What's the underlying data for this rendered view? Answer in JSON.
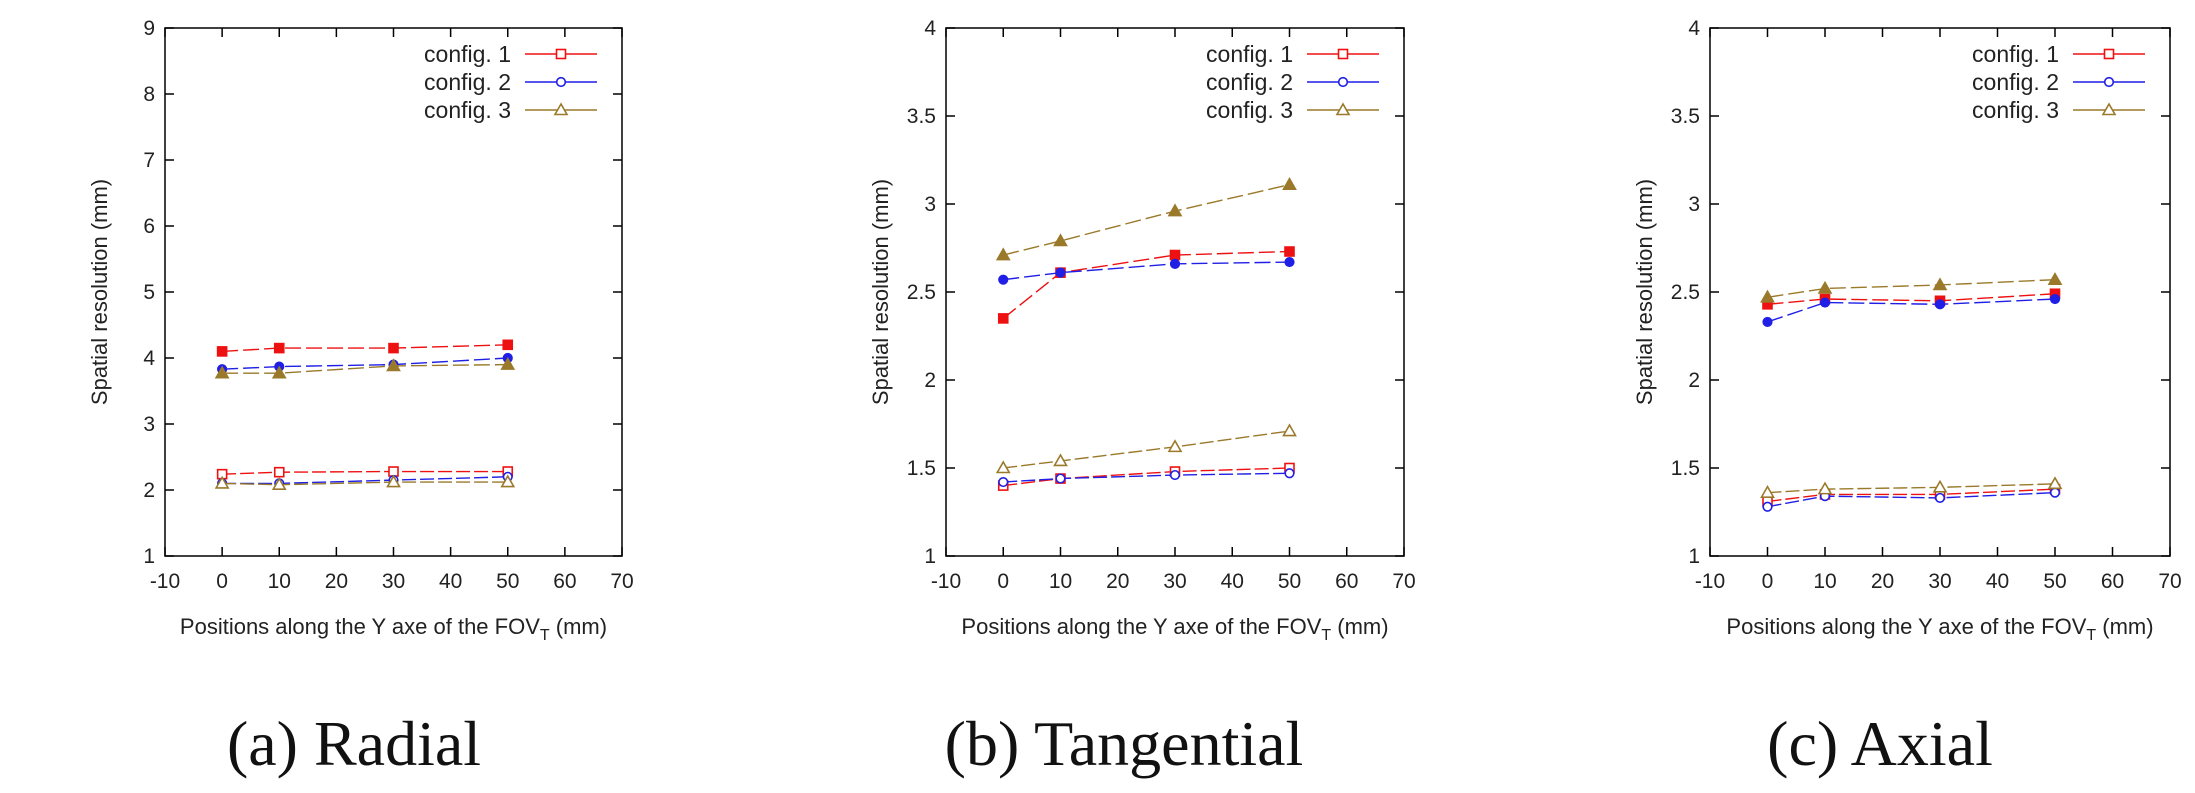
{
  "colors": {
    "config1": "#ee1111",
    "config2": "#1f1fe6",
    "config3": "#9a7a2a"
  },
  "chart_data": [
    {
      "type": "line",
      "caption": "(a)  Radial",
      "xlabel": "Positions along the Y axe of the FOV",
      "xlabel_sub": "T",
      "xlabel_unit": "(mm)",
      "ylabel": "Spatial resolution (mm)",
      "xlim": [
        -10,
        70
      ],
      "ylim": [
        1,
        9
      ],
      "xticks": [
        "-10",
        "0",
        "10",
        "20",
        "30",
        "40",
        "50",
        "60",
        "70"
      ],
      "yticks": [
        "1",
        "2",
        "3",
        "4",
        "5",
        "6",
        "7",
        "8",
        "9"
      ],
      "legend": [
        "config. 1",
        "config. 2",
        "config. 3"
      ],
      "legend_position": "top-right",
      "x": [
        0,
        10,
        30,
        50
      ],
      "series": [
        {
          "name": "config. 1",
          "marker": "square-filled",
          "values": [
            4.1,
            4.15,
            4.15,
            4.2
          ]
        },
        {
          "name": "config. 2",
          "marker": "circle-filled",
          "values": [
            3.83,
            3.87,
            3.9,
            4.0
          ]
        },
        {
          "name": "config. 3",
          "marker": "triangle-filled",
          "values": [
            3.77,
            3.77,
            3.88,
            3.9
          ]
        },
        {
          "name": "config. 1",
          "marker": "square-open",
          "values": [
            2.24,
            2.27,
            2.28,
            2.28
          ]
        },
        {
          "name": "config. 2",
          "marker": "circle-open",
          "values": [
            2.1,
            2.1,
            2.15,
            2.2
          ]
        },
        {
          "name": "config. 3",
          "marker": "triangle-open",
          "values": [
            2.1,
            2.08,
            2.12,
            2.12
          ]
        }
      ]
    },
    {
      "type": "line",
      "caption": "(b)  Tangential",
      "xlabel": "Positions along the Y axe of the FOV",
      "xlabel_sub": "T",
      "xlabel_unit": "(mm)",
      "ylabel": "Spatial resolution (mm)",
      "xlim": [
        -10,
        70
      ],
      "ylim": [
        1,
        4
      ],
      "xticks": [
        "-10",
        "0",
        "10",
        "20",
        "30",
        "40",
        "50",
        "60",
        "70"
      ],
      "yticks": [
        "1",
        "1.5",
        "2",
        "2.5",
        "3",
        "3.5",
        "4"
      ],
      "legend": [
        "config. 1",
        "config. 2",
        "config. 3"
      ],
      "legend_position": "top-right",
      "x": [
        0,
        10,
        30,
        50
      ],
      "series": [
        {
          "name": "config. 1",
          "marker": "square-filled",
          "values": [
            2.35,
            2.61,
            2.71,
            2.73
          ]
        },
        {
          "name": "config. 2",
          "marker": "circle-filled",
          "values": [
            2.57,
            2.61,
            2.66,
            2.67
          ]
        },
        {
          "name": "config. 3",
          "marker": "triangle-filled",
          "values": [
            2.71,
            2.79,
            2.96,
            3.11
          ]
        },
        {
          "name": "config. 1",
          "marker": "square-open",
          "values": [
            1.4,
            1.44,
            1.48,
            1.5
          ]
        },
        {
          "name": "config. 2",
          "marker": "circle-open",
          "values": [
            1.42,
            1.44,
            1.46,
            1.47
          ]
        },
        {
          "name": "config. 3",
          "marker": "triangle-open",
          "values": [
            1.5,
            1.54,
            1.62,
            1.71
          ]
        }
      ]
    },
    {
      "type": "line",
      "caption": "(c)  Axial",
      "xlabel": "Positions along the Y axe of the FOV",
      "xlabel_sub": "T",
      "xlabel_unit": "(mm)",
      "ylabel": "Spatial resolution (mm)",
      "xlim": [
        -10,
        70
      ],
      "ylim": [
        1,
        4
      ],
      "xticks": [
        "-10",
        "0",
        "10",
        "20",
        "30",
        "40",
        "50",
        "60",
        "70"
      ],
      "yticks": [
        "1",
        "1.5",
        "2",
        "2.5",
        "3",
        "3.5",
        "4"
      ],
      "legend": [
        "config. 1",
        "config. 2",
        "config. 3"
      ],
      "legend_position": "top-right",
      "x": [
        0,
        10,
        30,
        50
      ],
      "series": [
        {
          "name": "config. 1",
          "marker": "square-filled",
          "values": [
            2.43,
            2.46,
            2.45,
            2.49
          ]
        },
        {
          "name": "config. 2",
          "marker": "circle-filled",
          "values": [
            2.33,
            2.44,
            2.43,
            2.46
          ]
        },
        {
          "name": "config. 3",
          "marker": "triangle-filled",
          "values": [
            2.47,
            2.52,
            2.54,
            2.57
          ]
        },
        {
          "name": "config. 1",
          "marker": "square-open",
          "values": [
            1.31,
            1.35,
            1.35,
            1.38
          ]
        },
        {
          "name": "config. 2",
          "marker": "circle-open",
          "values": [
            1.28,
            1.34,
            1.33,
            1.36
          ]
        },
        {
          "name": "config. 3",
          "marker": "triangle-open",
          "values": [
            1.36,
            1.38,
            1.39,
            1.41
          ]
        }
      ]
    }
  ]
}
